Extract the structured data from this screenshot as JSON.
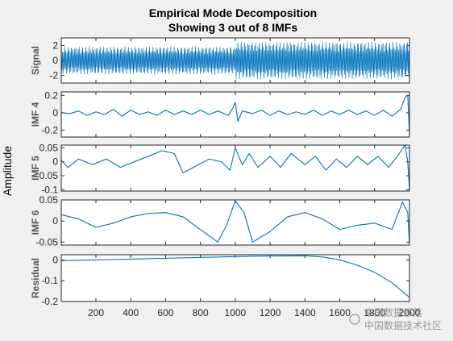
{
  "chart_data": {
    "type": "line",
    "title": "Empirical Mode Decomposition",
    "subtitle": "Showing 3 out of 8 IMFs",
    "shared_ylabel": "Amplitude",
    "xlim": [
      1,
      2000
    ],
    "x_ticks": [
      200,
      400,
      600,
      800,
      1000,
      1200,
      1400,
      1600,
      1800,
      2000
    ],
    "line_color": "#0072bd",
    "panels": [
      {
        "name": "Signal",
        "ylim": [
          -3,
          3
        ],
        "y_ticks": [
          -2,
          0,
          2
        ],
        "description_points": {
          "x": [
            1,
            1000,
            1001,
            2000
          ],
          "y_amplitude": [
            1.8,
            1.8,
            2.4,
            2.4
          ]
        }
      },
      {
        "name": "IMF 4",
        "ylim": [
          -0.28,
          0.24
        ],
        "y_ticks": [
          -0.2,
          0,
          0.2
        ],
        "x": [
          1,
          50,
          100,
          150,
          200,
          250,
          300,
          350,
          400,
          450,
          500,
          550,
          600,
          650,
          700,
          750,
          800,
          850,
          900,
          960,
          985,
          1000,
          1015,
          1040,
          1100,
          1150,
          1200,
          1250,
          1300,
          1350,
          1400,
          1450,
          1500,
          1550,
          1600,
          1650,
          1700,
          1750,
          1800,
          1850,
          1900,
          1950,
          1975,
          1990,
          2000
        ],
        "y": [
          0,
          -0.01,
          0.02,
          -0.03,
          0.01,
          -0.02,
          0.04,
          -0.04,
          0.03,
          -0.02,
          0.01,
          -0.03,
          0.03,
          -0.02,
          0.02,
          -0.02,
          0.03,
          -0.02,
          0.02,
          -0.03,
          0.05,
          0.12,
          -0.1,
          0.02,
          -0.01,
          0.03,
          -0.03,
          0.02,
          -0.02,
          0.01,
          -0.02,
          0.03,
          -0.03,
          0.02,
          -0.02,
          0.03,
          -0.02,
          0.02,
          -0.03,
          0.03,
          -0.04,
          0.04,
          0.18,
          0.2,
          -0.26
        ]
      },
      {
        "name": "IMF 5",
        "ylim": [
          -0.105,
          0.06
        ],
        "y_ticks": [
          -0.1,
          -0.05,
          0,
          0.05
        ],
        "x": [
          1,
          40,
          100,
          180,
          260,
          340,
          420,
          500,
          580,
          650,
          700,
          760,
          850,
          920,
          970,
          1000,
          1040,
          1080,
          1130,
          1200,
          1260,
          1320,
          1400,
          1460,
          1520,
          1580,
          1640,
          1700,
          1760,
          1820,
          1880,
          1930,
          1975,
          1990,
          2000
        ],
        "y": [
          0.005,
          -0.02,
          0.01,
          -0.01,
          0.01,
          -0.02,
          0.0,
          0.02,
          0.04,
          0.03,
          -0.04,
          -0.02,
          0.01,
          0.0,
          -0.03,
          0.05,
          -0.01,
          0.03,
          -0.02,
          0.02,
          -0.02,
          0.03,
          -0.01,
          0.02,
          -0.03,
          0.01,
          -0.02,
          0.02,
          -0.01,
          0.02,
          -0.02,
          0.02,
          0.06,
          0.0,
          -0.1
        ]
      },
      {
        "name": "IMF 6",
        "ylim": [
          -0.057,
          0.05
        ],
        "y_ticks": [
          -0.05,
          0,
          0.05
        ],
        "x": [
          1,
          100,
          200,
          300,
          400,
          500,
          600,
          700,
          800,
          900,
          950,
          1000,
          1050,
          1100,
          1200,
          1300,
          1400,
          1500,
          1600,
          1700,
          1800,
          1900,
          1960,
          1990,
          2000
        ],
        "y": [
          0.015,
          0.005,
          -0.015,
          -0.005,
          0.01,
          0.018,
          0.02,
          0.01,
          -0.02,
          -0.05,
          -0.01,
          0.048,
          0.02,
          -0.05,
          -0.025,
          0.01,
          0.02,
          0.005,
          -0.02,
          -0.01,
          -0.005,
          -0.02,
          0.045,
          0.02,
          -0.055
        ]
      },
      {
        "name": "Residual",
        "ylim": [
          -0.2,
          0.025
        ],
        "y_ticks": [
          -0.2,
          -0.1,
          0
        ],
        "x": [
          1,
          200,
          400,
          600,
          800,
          1000,
          1200,
          1400,
          1500,
          1600,
          1700,
          1800,
          1900,
          2000
        ],
        "y": [
          -0.003,
          0.0,
          0.004,
          0.008,
          0.012,
          0.016,
          0.019,
          0.02,
          0.014,
          0.0,
          -0.025,
          -0.06,
          -0.11,
          -0.18
        ]
      }
    ]
  },
  "watermark": {
    "line1": "中国数据部落",
    "line2": "中国数据技术社区"
  }
}
